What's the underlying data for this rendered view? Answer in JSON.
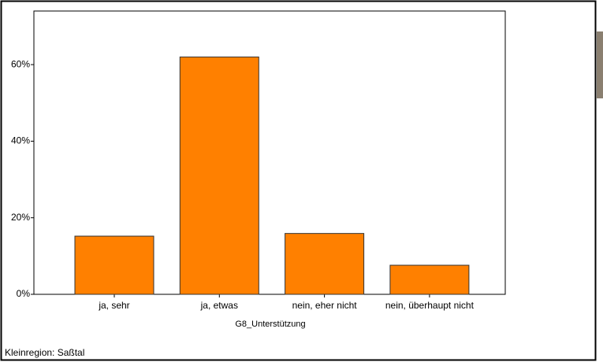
{
  "chart_data": {
    "type": "bar",
    "categories": [
      "ja, sehr",
      "ja, etwas",
      "nein, eher nicht",
      "nein, überhaupt nicht"
    ],
    "values": [
      15.2,
      62,
      15.9,
      7.6
    ],
    "color": "#ff8000",
    "x_label": "G8_Unterstützung",
    "footer": "Kleinregion: Saßtal",
    "ylim": [
      0,
      74
    ],
    "yticks": [
      {
        "value": 0,
        "label": "0%"
      },
      {
        "value": 20,
        "label": "20%"
      },
      {
        "value": 40,
        "label": "40%"
      },
      {
        "value": 60,
        "label": "60%"
      }
    ],
    "grid": false
  }
}
